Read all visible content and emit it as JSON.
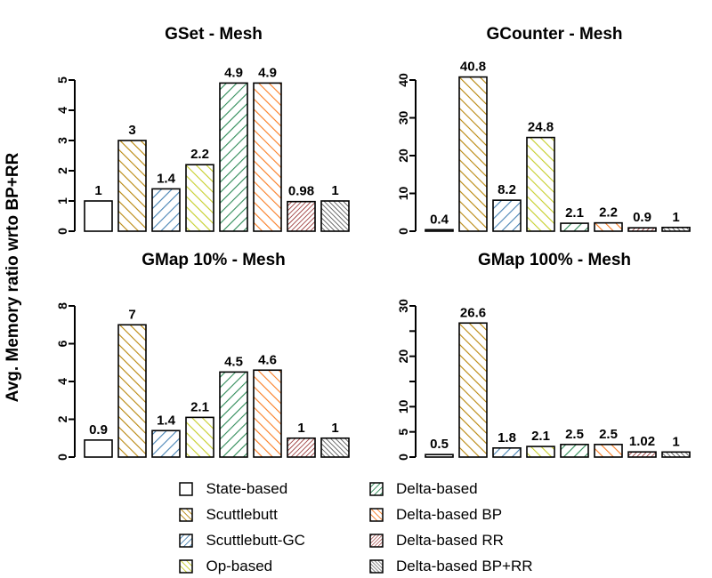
{
  "figure": {
    "y_axis_label": "Avg. Memory ratio wrto BP+RR"
  },
  "series_styles": [
    {
      "name": "State-based",
      "color": "#000000",
      "hatch": "none",
      "dense": false
    },
    {
      "name": "Scuttlebutt",
      "color": "#B8860B",
      "hatch": "down",
      "dense": false
    },
    {
      "name": "Scuttlebutt-GC",
      "color": "#4682B4",
      "hatch": "up",
      "dense": false
    },
    {
      "name": "Op-based",
      "color": "#C6CE28",
      "hatch": "down",
      "dense": false
    },
    {
      "name": "Delta-based",
      "color": "#2E8B57",
      "hatch": "up",
      "dense": false
    },
    {
      "name": "Delta-based BP",
      "color": "#F97C22",
      "hatch": "down",
      "dense": false
    },
    {
      "name": "Delta-based RR",
      "color": "#8B1A1A",
      "hatch": "up",
      "dense": true
    },
    {
      "name": "Delta-based BP+RR",
      "color": "#3C3C3C",
      "hatch": "down",
      "dense": true
    }
  ],
  "legend": {
    "items": [
      "State-based",
      "Scuttlebutt",
      "Scuttlebutt-GC",
      "Op-based",
      "Delta-based",
      "Delta-based BP",
      "Delta-based RR",
      "Delta-based BP+RR"
    ]
  },
  "chart_data": [
    {
      "type": "bar",
      "title": "GSet - Mesh",
      "categories": [
        "State-based",
        "Scuttlebutt",
        "Scuttlebutt-GC",
        "Op-based",
        "Delta-based",
        "Delta-based BP",
        "Delta-based RR",
        "Delta-based BP+RR"
      ],
      "values": [
        1,
        3,
        1.4,
        2.2,
        4.9,
        4.9,
        0.98,
        1
      ],
      "value_labels": [
        "1",
        "3",
        "1.4",
        "2.2",
        "4.9",
        "4.9",
        "0.98",
        "1"
      ],
      "ylim": [
        0,
        5
      ],
      "yticks": [
        0,
        1,
        2,
        3,
        4,
        5
      ],
      "ytick_labels": [
        "0",
        "1",
        "2",
        "3",
        "4",
        "5"
      ],
      "xlabel": "",
      "ylabel": "",
      "grid": false
    },
    {
      "type": "bar",
      "title": "GCounter - Mesh",
      "categories": [
        "State-based",
        "Scuttlebutt",
        "Scuttlebutt-GC",
        "Op-based",
        "Delta-based",
        "Delta-based BP",
        "Delta-based RR",
        "Delta-based BP+RR"
      ],
      "values": [
        0.4,
        40.8,
        8.2,
        24.8,
        2.1,
        2.2,
        0.9,
        1
      ],
      "value_labels": [
        "0.4",
        "40.8",
        "8.2",
        "24.8",
        "2.1",
        "2.2",
        "0.9",
        "1"
      ],
      "ylim": [
        0,
        40
      ],
      "yticks": [
        0,
        10,
        20,
        30,
        40
      ],
      "ytick_labels": [
        "0",
        "10",
        "20",
        "30",
        "40"
      ],
      "xlabel": "",
      "ylabel": "",
      "grid": false
    },
    {
      "type": "bar",
      "title": "GMap 10% - Mesh",
      "categories": [
        "State-based",
        "Scuttlebutt",
        "Scuttlebutt-GC",
        "Op-based",
        "Delta-based",
        "Delta-based BP",
        "Delta-based RR",
        "Delta-based BP+RR"
      ],
      "values": [
        0.9,
        7,
        1.4,
        2.1,
        4.5,
        4.6,
        1,
        1
      ],
      "value_labels": [
        "0.9",
        "7",
        "1.4",
        "2.1",
        "4.5",
        "4.6",
        "1",
        "1"
      ],
      "ylim": [
        0,
        8
      ],
      "yticks": [
        0,
        2,
        4,
        6,
        8
      ],
      "ytick_labels": [
        "0",
        "2",
        "4",
        "6",
        "8"
      ],
      "xlabel": "",
      "ylabel": "",
      "grid": false
    },
    {
      "type": "bar",
      "title": "GMap 100% - Mesh",
      "categories": [
        "State-based",
        "Scuttlebutt",
        "Scuttlebutt-GC",
        "Op-based",
        "Delta-based",
        "Delta-based BP",
        "Delta-based RR",
        "Delta-based BP+RR"
      ],
      "values": [
        0.5,
        26.6,
        1.8,
        2.1,
        2.5,
        2.5,
        1.02,
        1
      ],
      "value_labels": [
        "0.5",
        "26.6",
        "1.8",
        "2.1",
        "2.5",
        "2.5",
        "1.02",
        "1"
      ],
      "ylim": [
        0,
        30
      ],
      "yticks": [
        0,
        5,
        10,
        15,
        20,
        25,
        30
      ],
      "ytick_labels": [
        "0",
        "5",
        "10",
        "",
        "20",
        "",
        "30"
      ],
      "xlabel": "",
      "ylabel": "",
      "grid": false
    }
  ]
}
